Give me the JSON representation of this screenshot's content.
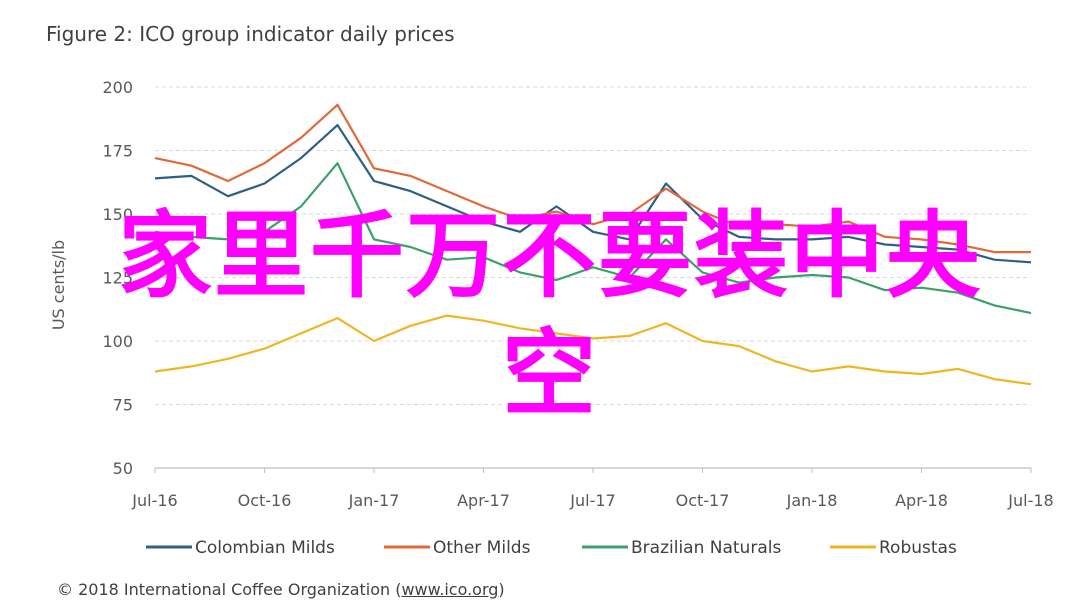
{
  "figure_title": "Figure 2: ICO group indicator daily prices",
  "copyright": {
    "prefix": "© 2018 International Coffee Organization (",
    "link": "www.ico.org",
    "suffix": ")"
  },
  "watermark": {
    "line1": "家里千万不要装中央",
    "line2": "空"
  },
  "chart_data": {
    "type": "line",
    "title": "Figure 2: ICO group indicator daily prices",
    "ylabel": "US cents/lb",
    "ylim": [
      50,
      200
    ],
    "yticks": [
      "200",
      "175",
      "150",
      "125",
      "100",
      "75",
      "50"
    ],
    "ytick_values": [
      200,
      175,
      150,
      125,
      100,
      75,
      50
    ],
    "xlim": [
      "2016-07",
      "2018-07"
    ],
    "xticks": [
      "Jul-16",
      "Oct-16",
      "Jan-17",
      "Apr-17",
      "Jul-17",
      "Oct-17",
      "Jan-18",
      "Apr-18",
      "Jul-18"
    ],
    "grid": "horizontal-dashed",
    "legend_position": "bottom",
    "x": [
      "Jul-16",
      "Aug-16",
      "Sep-16",
      "Oct-16",
      "Nov-16",
      "Dec-16",
      "Jan-17",
      "Feb-17",
      "Mar-17",
      "Apr-17",
      "May-17",
      "Jun-17",
      "Jul-17",
      "Aug-17",
      "Sep-17",
      "Oct-17",
      "Nov-17",
      "Dec-17",
      "Jan-18",
      "Feb-18",
      "Mar-18",
      "Apr-18",
      "May-18",
      "Jun-18",
      "Jul-18"
    ],
    "series": [
      {
        "name": "Colombian Milds",
        "color": "#2e5f84",
        "values": [
          164,
          165,
          157,
          162,
          172,
          185,
          163,
          159,
          153,
          147,
          143,
          153,
          143,
          140,
          162,
          148,
          141,
          140,
          140,
          141,
          138,
          137,
          136,
          132,
          131
        ]
      },
      {
        "name": "Other Milds",
        "color": "#e0693a",
        "values": [
          172,
          169,
          163,
          170,
          180,
          193,
          168,
          165,
          159,
          153,
          148,
          151,
          146,
          150,
          160,
          151,
          145,
          146,
          145,
          147,
          141,
          140,
          138,
          135,
          135
        ]
      },
      {
        "name": "Brazilian Naturals",
        "color": "#3da06b",
        "values": [
          143,
          141,
          140,
          143,
          153,
          170,
          140,
          137,
          132,
          133,
          127,
          124,
          129,
          125,
          140,
          127,
          123,
          125,
          126,
          125,
          120,
          121,
          119,
          114,
          111
        ]
      },
      {
        "name": "Robustas",
        "color": "#f0b523",
        "values": [
          88,
          90,
          93,
          97,
          103,
          109,
          100,
          106,
          110,
          108,
          105,
          103,
          101,
          102,
          107,
          100,
          98,
          92,
          88,
          90,
          88,
          87,
          89,
          85,
          83
        ]
      }
    ]
  }
}
